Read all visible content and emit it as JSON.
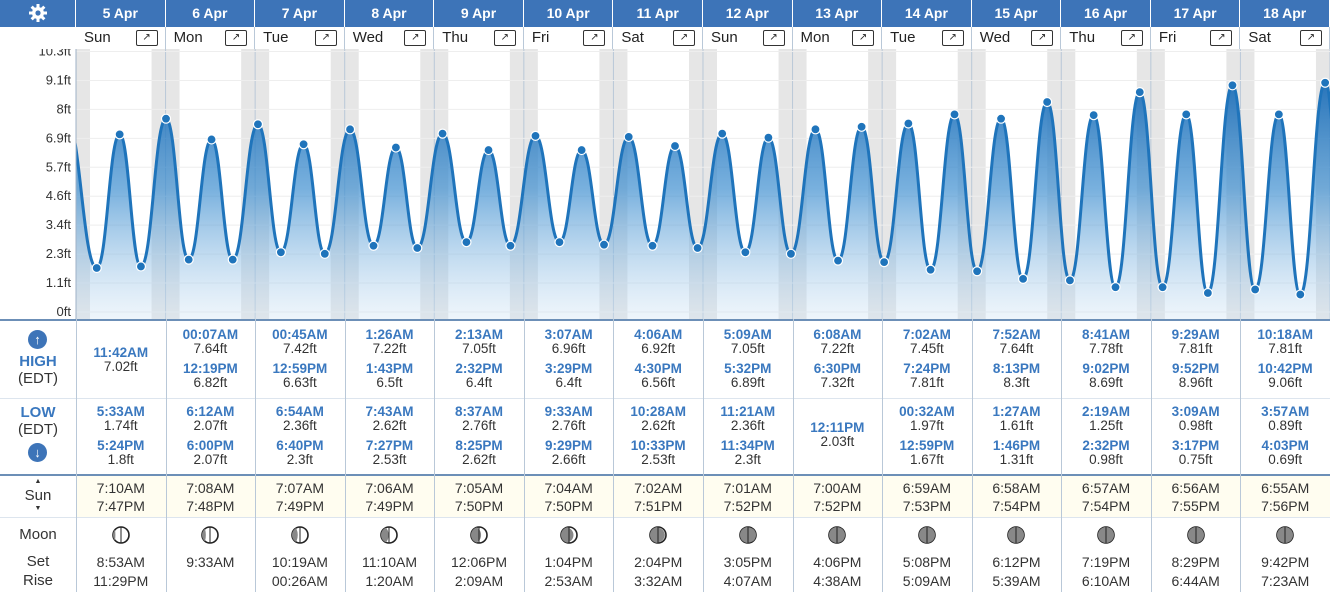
{
  "header": {
    "settings_icon": "gear-icon"
  },
  "days": [
    {
      "date": "5 Apr",
      "weekday": "Sun",
      "high": [
        {
          "time": "11:42AM",
          "height": "7.02ft"
        }
      ],
      "low": [
        {
          "time": "5:33AM",
          "height": "1.74ft"
        },
        {
          "time": "5:24PM",
          "height": "1.8ft"
        }
      ],
      "sunrise": "7:10AM",
      "sunset": "7:47PM",
      "moonset": "8:53AM",
      "moonrise": "11:29PM",
      "moon_phase": 0.9
    },
    {
      "date": "6 Apr",
      "weekday": "Mon",
      "high": [
        {
          "time": "00:07AM",
          "height": "7.64ft"
        },
        {
          "time": "12:19PM",
          "height": "6.82ft"
        }
      ],
      "low": [
        {
          "time": "6:12AM",
          "height": "2.07ft"
        },
        {
          "time": "6:00PM",
          "height": "2.07ft"
        }
      ],
      "sunrise": "7:08AM",
      "sunset": "7:48PM",
      "moonset": "9:33AM",
      "moonrise": "",
      "moon_phase": 0.84
    },
    {
      "date": "7 Apr",
      "weekday": "Tue",
      "high": [
        {
          "time": "00:45AM",
          "height": "7.42ft"
        },
        {
          "time": "12:59PM",
          "height": "6.63ft"
        }
      ],
      "low": [
        {
          "time": "6:54AM",
          "height": "2.36ft"
        },
        {
          "time": "6:40PM",
          "height": "2.3ft"
        }
      ],
      "sunrise": "7:07AM",
      "sunset": "7:49PM",
      "moonset": "10:19AM",
      "moonrise": "00:26AM",
      "moon_phase": 0.76
    },
    {
      "date": "8 Apr",
      "weekday": "Wed",
      "high": [
        {
          "time": "1:26AM",
          "height": "7.22ft"
        },
        {
          "time": "1:43PM",
          "height": "6.5ft"
        }
      ],
      "low": [
        {
          "time": "7:43AM",
          "height": "2.62ft"
        },
        {
          "time": "7:27PM",
          "height": "2.53ft"
        }
      ],
      "sunrise": "7:06AM",
      "sunset": "7:49PM",
      "moonset": "11:10AM",
      "moonrise": "1:20AM",
      "moon_phase": 0.68
    },
    {
      "date": "9 Apr",
      "weekday": "Thu",
      "high": [
        {
          "time": "2:13AM",
          "height": "7.05ft"
        },
        {
          "time": "2:32PM",
          "height": "6.4ft"
        }
      ],
      "low": [
        {
          "time": "8:37AM",
          "height": "2.76ft"
        },
        {
          "time": "8:25PM",
          "height": "2.62ft"
        }
      ],
      "sunrise": "7:05AM",
      "sunset": "7:50PM",
      "moonset": "12:06PM",
      "moonrise": "2:09AM",
      "moon_phase": 0.58
    },
    {
      "date": "10 Apr",
      "weekday": "Fri",
      "high": [
        {
          "time": "3:07AM",
          "height": "6.96ft"
        },
        {
          "time": "3:29PM",
          "height": "6.4ft"
        }
      ],
      "low": [
        {
          "time": "9:33AM",
          "height": "2.76ft"
        },
        {
          "time": "9:29PM",
          "height": "2.66ft"
        }
      ],
      "sunrise": "7:04AM",
      "sunset": "7:50PM",
      "moonset": "1:04PM",
      "moonrise": "2:53AM",
      "moon_phase": 0.48
    },
    {
      "date": "11 Apr",
      "weekday": "Sat",
      "high": [
        {
          "time": "4:06AM",
          "height": "6.92ft"
        },
        {
          "time": "4:30PM",
          "height": "6.56ft"
        }
      ],
      "low": [
        {
          "time": "10:28AM",
          "height": "2.62ft"
        },
        {
          "time": "10:33PM",
          "height": "2.53ft"
        }
      ],
      "sunrise": "7:02AM",
      "sunset": "7:51PM",
      "moonset": "2:04PM",
      "moonrise": "3:32AM",
      "moon_phase": 0.38
    },
    {
      "date": "12 Apr",
      "weekday": "Sun",
      "high": [
        {
          "time": "5:09AM",
          "height": "7.05ft"
        },
        {
          "time": "5:32PM",
          "height": "6.89ft"
        }
      ],
      "low": [
        {
          "time": "11:21AM",
          "height": "2.36ft"
        },
        {
          "time": "11:34PM",
          "height": "2.3ft"
        }
      ],
      "sunrise": "7:01AM",
      "sunset": "7:52PM",
      "moonset": "3:05PM",
      "moonrise": "4:07AM",
      "moon_phase": 0.28
    },
    {
      "date": "13 Apr",
      "weekday": "Mon",
      "high": [
        {
          "time": "6:08AM",
          "height": "7.22ft"
        },
        {
          "time": "6:30PM",
          "height": "7.32ft"
        }
      ],
      "low": [
        {
          "time": "12:11PM",
          "height": "2.03ft"
        }
      ],
      "sunrise": "7:00AM",
      "sunset": "7:52PM",
      "moonset": "4:06PM",
      "moonrise": "4:38AM",
      "moon_phase": 0.2
    },
    {
      "date": "14 Apr",
      "weekday": "Tue",
      "high": [
        {
          "time": "7:02AM",
          "height": "7.45ft"
        },
        {
          "time": "7:24PM",
          "height": "7.81ft"
        }
      ],
      "low": [
        {
          "time": "00:32AM",
          "height": "1.97ft"
        },
        {
          "time": "12:59PM",
          "height": "1.67ft"
        }
      ],
      "sunrise": "6:59AM",
      "sunset": "7:53PM",
      "moonset": "5:08PM",
      "moonrise": "5:09AM",
      "moon_phase": 0.13
    },
    {
      "date": "15 Apr",
      "weekday": "Wed",
      "high": [
        {
          "time": "7:52AM",
          "height": "7.64ft"
        },
        {
          "time": "8:13PM",
          "height": "8.3ft"
        }
      ],
      "low": [
        {
          "time": "1:27AM",
          "height": "1.61ft"
        },
        {
          "time": "1:46PM",
          "height": "1.31ft"
        }
      ],
      "sunrise": "6:58AM",
      "sunset": "7:54PM",
      "moonset": "6:12PM",
      "moonrise": "5:39AM",
      "moon_phase": 0.07
    },
    {
      "date": "16 Apr",
      "weekday": "Thu",
      "high": [
        {
          "time": "8:41AM",
          "height": "7.78ft"
        },
        {
          "time": "9:02PM",
          "height": "8.69ft"
        }
      ],
      "low": [
        {
          "time": "2:19AM",
          "height": "1.25ft"
        },
        {
          "time": "2:32PM",
          "height": "0.98ft"
        }
      ],
      "sunrise": "6:57AM",
      "sunset": "7:54PM",
      "moonset": "7:19PM",
      "moonrise": "6:10AM",
      "moon_phase": 0.03
    },
    {
      "date": "17 Apr",
      "weekday": "Fri",
      "high": [
        {
          "time": "9:29AM",
          "height": "7.81ft"
        },
        {
          "time": "9:52PM",
          "height": "8.96ft"
        }
      ],
      "low": [
        {
          "time": "3:09AM",
          "height": "0.98ft"
        },
        {
          "time": "3:17PM",
          "height": "0.75ft"
        }
      ],
      "sunrise": "6:56AM",
      "sunset": "7:55PM",
      "moonset": "8:29PM",
      "moonrise": "6:44AM",
      "moon_phase": 0.01
    },
    {
      "date": "18 Apr",
      "weekday": "Sat",
      "high": [
        {
          "time": "10:18AM",
          "height": "7.81ft"
        },
        {
          "time": "10:42PM",
          "height": "9.06ft"
        }
      ],
      "low": [
        {
          "time": "3:57AM",
          "height": "0.89ft"
        },
        {
          "time": "4:03PM",
          "height": "0.69ft"
        }
      ],
      "sunrise": "6:55AM",
      "sunset": "7:56PM",
      "moonset": "9:42PM",
      "moonrise": "7:23AM",
      "moon_phase": 0.02
    }
  ],
  "axis": {
    "ticks": [
      "0ft",
      "1.1ft",
      "2.3ft",
      "3.4ft",
      "4.6ft",
      "5.7ft",
      "6.9ft",
      "8ft",
      "9.1ft",
      "10.3ft"
    ]
  },
  "labels": {
    "high": "HIGH",
    "high_tz": "(EDT)",
    "low": "LOW",
    "low_tz": "(EDT)",
    "sun": "Sun",
    "moon": "Moon",
    "set": "Set",
    "rise": "Rise",
    "expand_icon": "expand-icon"
  },
  "colors": {
    "header": "#3d74b8",
    "tide_line": "#1f74bb",
    "tide_fill": "#4a90d0",
    "high_text": "#3a78bf"
  },
  "chart_data": {
    "type": "area",
    "ylabel": "",
    "ylim": [
      0,
      10.3
    ],
    "points": [
      {
        "x": "5 Apr 5:33AM",
        "y": 1.74
      },
      {
        "x": "5 Apr 11:42AM",
        "y": 7.02
      },
      {
        "x": "5 Apr 5:24PM",
        "y": 1.8
      },
      {
        "x": "6 Apr 00:07AM",
        "y": 7.64
      },
      {
        "x": "6 Apr 6:12AM",
        "y": 2.07
      },
      {
        "x": "6 Apr 12:19PM",
        "y": 6.82
      },
      {
        "x": "6 Apr 6:00PM",
        "y": 2.07
      },
      {
        "x": "7 Apr 00:45AM",
        "y": 7.42
      },
      {
        "x": "7 Apr 6:54AM",
        "y": 2.36
      },
      {
        "x": "7 Apr 12:59PM",
        "y": 6.63
      },
      {
        "x": "7 Apr 6:40PM",
        "y": 2.3
      },
      {
        "x": "8 Apr 1:26AM",
        "y": 7.22
      },
      {
        "x": "8 Apr 7:43AM",
        "y": 2.62
      },
      {
        "x": "8 Apr 1:43PM",
        "y": 6.5
      },
      {
        "x": "8 Apr 7:27PM",
        "y": 2.53
      },
      {
        "x": "9 Apr 2:13AM",
        "y": 7.05
      },
      {
        "x": "9 Apr 8:37AM",
        "y": 2.76
      },
      {
        "x": "9 Apr 2:32PM",
        "y": 6.4
      },
      {
        "x": "9 Apr 8:25PM",
        "y": 2.62
      },
      {
        "x": "10 Apr 3:07AM",
        "y": 6.96
      },
      {
        "x": "10 Apr 9:33AM",
        "y": 2.76
      },
      {
        "x": "10 Apr 3:29PM",
        "y": 6.4
      },
      {
        "x": "10 Apr 9:29PM",
        "y": 2.66
      },
      {
        "x": "11 Apr 4:06AM",
        "y": 6.92
      },
      {
        "x": "11 Apr 10:28AM",
        "y": 2.62
      },
      {
        "x": "11 Apr 4:30PM",
        "y": 6.56
      },
      {
        "x": "11 Apr 10:33PM",
        "y": 2.53
      },
      {
        "x": "12 Apr 5:09AM",
        "y": 7.05
      },
      {
        "x": "12 Apr 11:21AM",
        "y": 2.36
      },
      {
        "x": "12 Apr 5:32PM",
        "y": 6.89
      },
      {
        "x": "12 Apr 11:34PM",
        "y": 2.3
      },
      {
        "x": "13 Apr 6:08AM",
        "y": 7.22
      },
      {
        "x": "13 Apr 12:11PM",
        "y": 2.03
      },
      {
        "x": "13 Apr 6:30PM",
        "y": 7.32
      },
      {
        "x": "14 Apr 00:32AM",
        "y": 1.97
      },
      {
        "x": "14 Apr 7:02AM",
        "y": 7.45
      },
      {
        "x": "14 Apr 12:59PM",
        "y": 1.67
      },
      {
        "x": "14 Apr 7:24PM",
        "y": 7.81
      },
      {
        "x": "15 Apr 1:27AM",
        "y": 1.61
      },
      {
        "x": "15 Apr 7:52AM",
        "y": 7.64
      },
      {
        "x": "15 Apr 1:46PM",
        "y": 1.31
      },
      {
        "x": "15 Apr 8:13PM",
        "y": 8.3
      },
      {
        "x": "16 Apr 2:19AM",
        "y": 1.25
      },
      {
        "x": "16 Apr 8:41AM",
        "y": 7.78
      },
      {
        "x": "16 Apr 2:32PM",
        "y": 0.98
      },
      {
        "x": "16 Apr 9:02PM",
        "y": 8.69
      },
      {
        "x": "17 Apr 3:09AM",
        "y": 0.98
      },
      {
        "x": "17 Apr 9:29AM",
        "y": 7.81
      },
      {
        "x": "17 Apr 3:17PM",
        "y": 0.75
      },
      {
        "x": "17 Apr 9:52PM",
        "y": 8.96
      },
      {
        "x": "18 Apr 3:57AM",
        "y": 0.89
      },
      {
        "x": "18 Apr 10:18AM",
        "y": 7.81
      },
      {
        "x": "18 Apr 4:03PM",
        "y": 0.69
      },
      {
        "x": "18 Apr 10:42PM",
        "y": 9.06
      }
    ]
  }
}
